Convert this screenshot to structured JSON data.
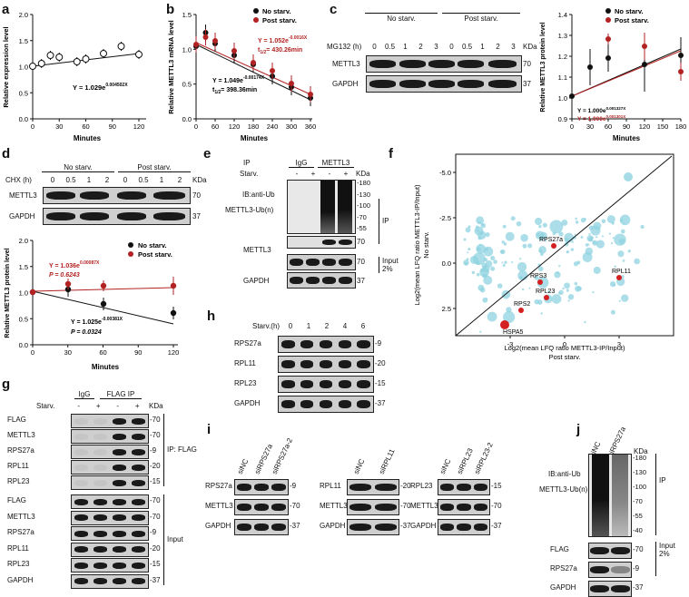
{
  "panel_letters": [
    "a",
    "b",
    "c",
    "d",
    "e",
    "f",
    "g",
    "h",
    "i",
    "j"
  ],
  "panel_a": {
    "xlabel": "Minutes",
    "ylabel": "Relative expression level",
    "equation": "Y = 1.029e",
    "equation_exp": "0.004502X",
    "xticks": [
      "0",
      "30",
      "60",
      "90",
      "120"
    ],
    "yticks": [
      "0.0",
      "0.5",
      "1.0",
      "1.5",
      "2.0"
    ]
  },
  "panel_b": {
    "xlabel": "Minutes",
    "ylabel": "Relative METTL3 mRNA level",
    "legend": [
      "No starv.",
      "Post starv."
    ],
    "eq_post": "Y = 1.052e",
    "eq_post_exp": "-0.0016X",
    "t_post": "t",
    "t_post_sub": "1/2",
    "t_post_val": "= 430.26min",
    "eq_no": "Y = 1.049e",
    "eq_no_exp": "-0.00174X",
    "t_no_val": "= 398.36min",
    "xticks": [
      "0",
      "120",
      "240",
      "360"
    ],
    "xticks_minor": [
      "60",
      "180",
      "300"
    ],
    "yticks": [
      "0.0",
      "0.5",
      "1.0",
      "1.5"
    ]
  },
  "panel_c": {
    "headers": [
      "No starv.",
      "Post starv."
    ],
    "row_label": "MG132 (h)",
    "times": [
      "0",
      "0.5",
      "1",
      "2",
      "3",
      "0",
      "0.5",
      "1",
      "2",
      "3"
    ],
    "kda": "KDa",
    "blots": [
      {
        "name": "METTL3",
        "kda": "70"
      },
      {
        "name": "GAPDH",
        "kda": "37"
      }
    ],
    "legend": [
      "No starv.",
      "Post starv."
    ],
    "xlabel": "Minutes",
    "ylabel": "Relative METTL3 protein level",
    "eq_no": "Y = 1.000e",
    "eq_no_exp": "0.001327X",
    "eq_post": "Y = 1.000e",
    "eq_post_exp": "0.001301X",
    "xticks": [
      "0",
      "30",
      "60",
      "90",
      "120",
      "150",
      "180"
    ],
    "yticks": [
      "0.9",
      "1.0",
      "1.1",
      "1.2",
      "1.3",
      "1.4"
    ]
  },
  "panel_d": {
    "headers": [
      "No starv.",
      "Post starv."
    ],
    "row_label": "CHX (h)",
    "times": [
      "0",
      "0.5",
      "1",
      "2",
      "0",
      "0.5",
      "1",
      "2"
    ],
    "kda": "KDa",
    "blots": [
      {
        "name": "METTL3",
        "kda": "70"
      },
      {
        "name": "GAPDH",
        "kda": "37"
      }
    ],
    "legend": [
      "No starv.",
      "Post starv."
    ],
    "eq_post": "Y = 1.036e",
    "eq_post_exp": "0.00087X",
    "p_post": "P = 0.6243",
    "eq_no": "Y = 1.025e",
    "eq_no_exp": "-0.00381X",
    "p_no": "P = 0.0324",
    "xlabel": "Minutes",
    "ylabel": "Relative METTL3 protein level",
    "xticks": [
      "0",
      "30",
      "60",
      "90",
      "120"
    ],
    "yticks": [
      "0.0",
      "0.5",
      "1.0",
      "1.5",
      "2.0"
    ]
  },
  "panel_e": {
    "ip_label": "IP",
    "igg": "IgG",
    "mettl3": "METTL3",
    "starv": "Starv.",
    "signs": [
      "-",
      "+",
      "-",
      "+"
    ],
    "kda": "KDa",
    "ub_label": "IB:anti-Ub",
    "ubn_label": "METTL3-Ub(n)",
    "markers": [
      "180",
      "130",
      "100",
      "70",
      "55"
    ],
    "ip_side": "IP",
    "blots": [
      {
        "name": "METTL3",
        "kda": "70"
      },
      {
        "name": "",
        "kda": "70"
      },
      {
        "name": "GAPDH",
        "kda": "37"
      }
    ],
    "input_side": "Input 2%"
  },
  "panel_f": {
    "ylabel1": "Log2(mean LFQ ratio METTL3-IP/Input)",
    "ylabel2": "No starv.",
    "xlabel1": "Log2(mean LFQ ratio METTL3-IP/Input)",
    "xlabel2": "Post starv.",
    "xticks": [
      "-3",
      "0",
      "3"
    ],
    "yticks": [
      "2.5",
      "0.0",
      "-2.5",
      "-5.0"
    ],
    "labels": [
      "RPS27a",
      "RPS3",
      "RPL11",
      "RPL23",
      "RPS2",
      "HSPA5"
    ]
  },
  "panel_g": {
    "igg": "IgG",
    "flag_ip": "FLAG IP",
    "starv": "Starv.",
    "signs": [
      "-",
      "+",
      "-",
      "+"
    ],
    "kda": "KDa",
    "ip_blots": [
      {
        "name": "FLAG",
        "kda": "70"
      },
      {
        "name": "METTL3",
        "kda": "70"
      },
      {
        "name": "RPS27a",
        "kda": "9"
      },
      {
        "name": "RPL11",
        "kda": "20"
      },
      {
        "name": "RPL23",
        "kda": "15"
      }
    ],
    "ip_side": "IP: FLAG",
    "input_blots": [
      {
        "name": "FLAG",
        "kda": "70"
      },
      {
        "name": "METTL3",
        "kda": "70"
      },
      {
        "name": "RPS27a",
        "kda": "9"
      },
      {
        "name": "RPL11",
        "kda": "20"
      },
      {
        "name": "RPL23",
        "kda": "15"
      },
      {
        "name": "GAPDH",
        "kda": "37"
      }
    ],
    "input_side": "Input"
  },
  "panel_h": {
    "row_label": "Starv.(h)",
    "times": [
      "0",
      "1",
      "2",
      "4",
      "6"
    ],
    "blots": [
      {
        "name": "RPS27a",
        "kda": "9"
      },
      {
        "name": "RPL11",
        "kda": "20"
      },
      {
        "name": "RPL23",
        "kda": "15"
      },
      {
        "name": "GAPDH",
        "kda": "37"
      }
    ]
  },
  "panel_i": {
    "groups": [
      {
        "lanes": [
          "siNC",
          "siRPS27a",
          "siRPS27a-2"
        ],
        "blots": [
          {
            "name": "RPS27a",
            "kda": "9"
          },
          {
            "name": "METTL3",
            "kda": "70"
          },
          {
            "name": "GAPDH",
            "kda": "37"
          }
        ]
      },
      {
        "lanes": [
          "siNC",
          "siRPL11"
        ],
        "blots": [
          {
            "name": "RPL11",
            "kda": "20"
          },
          {
            "name": "METTL3",
            "kda": "70"
          },
          {
            "name": "GAPDH",
            "kda": "37"
          }
        ]
      },
      {
        "lanes": [
          "siNC",
          "siRPL23",
          "siRPL23-2"
        ],
        "blots": [
          {
            "name": "RPL23",
            "kda": "15"
          },
          {
            "name": "METTL3",
            "kda": "70"
          },
          {
            "name": "GAPDH",
            "kda": "37"
          }
        ]
      }
    ]
  },
  "panel_j": {
    "lanes": [
      "siNC",
      "siRPS27a"
    ],
    "kda": "KDa",
    "ub_label": "IB:anti-Ub",
    "ubn_label": "METTL3-Ub(n)",
    "markers": [
      "180",
      "130",
      "100",
      "70",
      "55",
      "40"
    ],
    "ip_side": "IP",
    "blots": [
      {
        "name": "FLAG",
        "kda": "70"
      },
      {
        "name": "RPS27a",
        "kda": "9"
      },
      {
        "name": "GAPDH",
        "kda": "37"
      }
    ],
    "input_side": "Input 2%"
  },
  "colors": {
    "black": "#111111",
    "red": "#b22222",
    "scatter": "#8fd3e0",
    "highlight": "#d42020"
  }
}
